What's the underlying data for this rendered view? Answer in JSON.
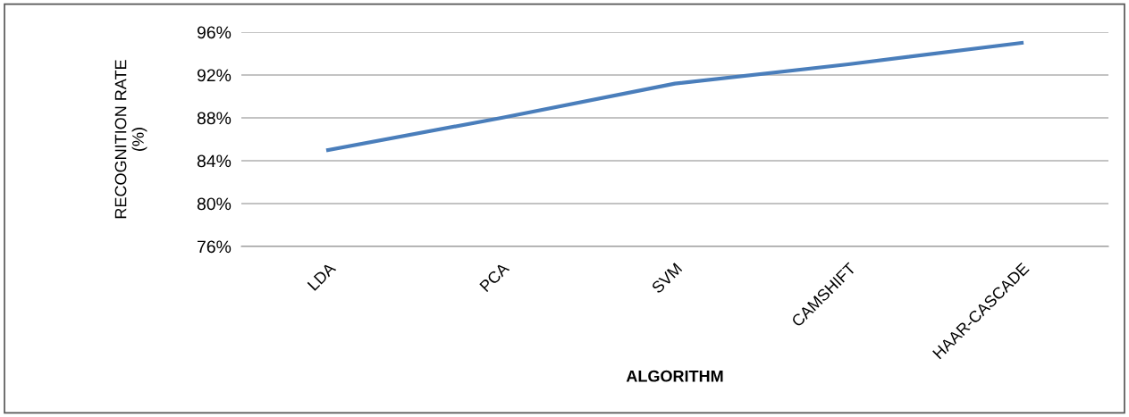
{
  "chart_data": {
    "type": "line",
    "xlabel": "ALGORITHM",
    "ylabel": "RECOGNITION RATE\n(%)",
    "categories": [
      "LDA",
      "PCA",
      "SVM",
      "CAMSHIFT",
      "HAAR-CASCADE"
    ],
    "series": [
      {
        "color": "#4a7ebb",
        "values": [
          85,
          88,
          91.2,
          93,
          95
        ]
      }
    ],
    "ylim": [
      76,
      96
    ],
    "yticks": [
      {
        "value": 76,
        "label": "76%"
      },
      {
        "value": 80,
        "label": "80%"
      },
      {
        "value": 84,
        "label": "84%"
      },
      {
        "value": 88,
        "label": "88%"
      },
      {
        "value": 92,
        "label": "92%"
      },
      {
        "value": 96,
        "label": "96%"
      }
    ],
    "grid": "y",
    "marker": "none",
    "line_style": "solid"
  }
}
